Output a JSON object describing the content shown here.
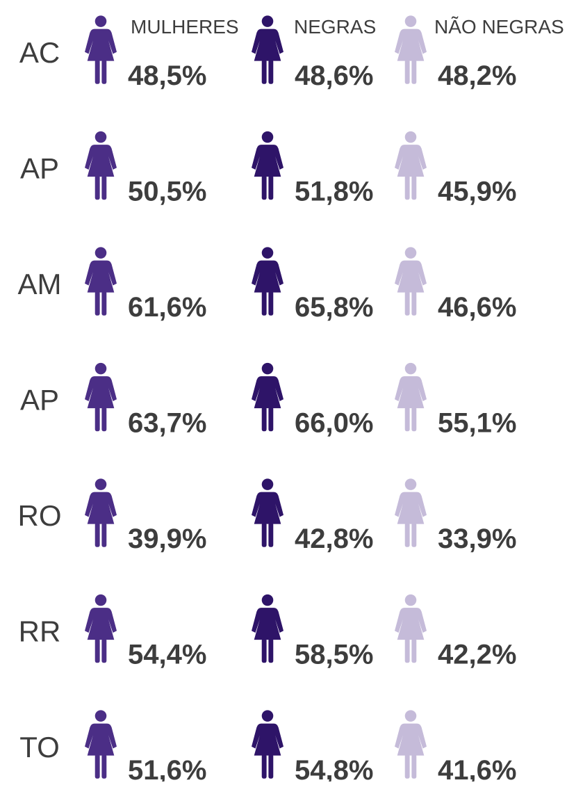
{
  "headers": [
    "MULHERES",
    "NEGRAS",
    "NÃO NEGRAS"
  ],
  "rows": [
    {
      "state": "AC",
      "values": [
        "48,5%",
        "48,6%",
        "48,2%"
      ]
    },
    {
      "state": "AP",
      "values": [
        "50,5%",
        "51,8%",
        "45,9%"
      ]
    },
    {
      "state": "AM",
      "values": [
        "61,6%",
        "65,8%",
        "46,6%"
      ]
    },
    {
      "state": "AP",
      "values": [
        "63,7%",
        "66,0%",
        "55,1%"
      ]
    },
    {
      "state": "RO",
      "values": [
        "39,9%",
        "42,8%",
        "33,9%"
      ]
    },
    {
      "state": "RR",
      "values": [
        "54,4%",
        "58,5%",
        "42,2%"
      ]
    },
    {
      "state": "TO",
      "values": [
        "51,6%",
        "54,8%",
        "41,6%"
      ]
    }
  ]
}
